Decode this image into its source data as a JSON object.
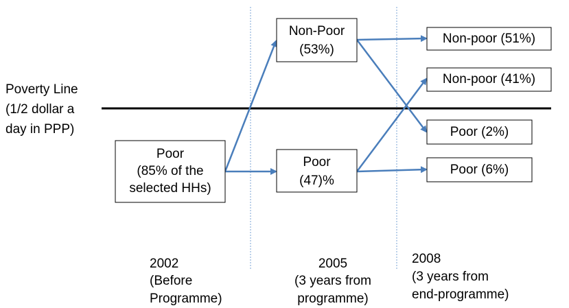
{
  "poverty_line": {
    "lines": [
      "Poverty Line",
      "(1/2 dollar a",
      "day in PPP)"
    ]
  },
  "nodes": [
    {
      "lines": [
        "Poor",
        "(85% of the",
        "selected HHs)"
      ]
    },
    {
      "lines": [
        "Non-Poor",
        "(53%)"
      ]
    },
    {
      "lines": [
        "Poor",
        "(47)%"
      ]
    },
    {
      "lines": [
        "Non-poor (51%)"
      ]
    },
    {
      "lines": [
        "Non-poor (41%)"
      ]
    },
    {
      "lines": [
        "Poor (2%)"
      ]
    },
    {
      "lines": [
        "Poor (6%)"
      ]
    }
  ],
  "periods": [
    {
      "lines": [
        "2002",
        "(Before",
        "Programme)"
      ]
    },
    {
      "lines": [
        "2005",
        "(3 years from",
        "programme)"
      ]
    },
    {
      "lines": [
        "2008",
        "(3 years from",
        "end-programme)"
      ]
    }
  ]
}
